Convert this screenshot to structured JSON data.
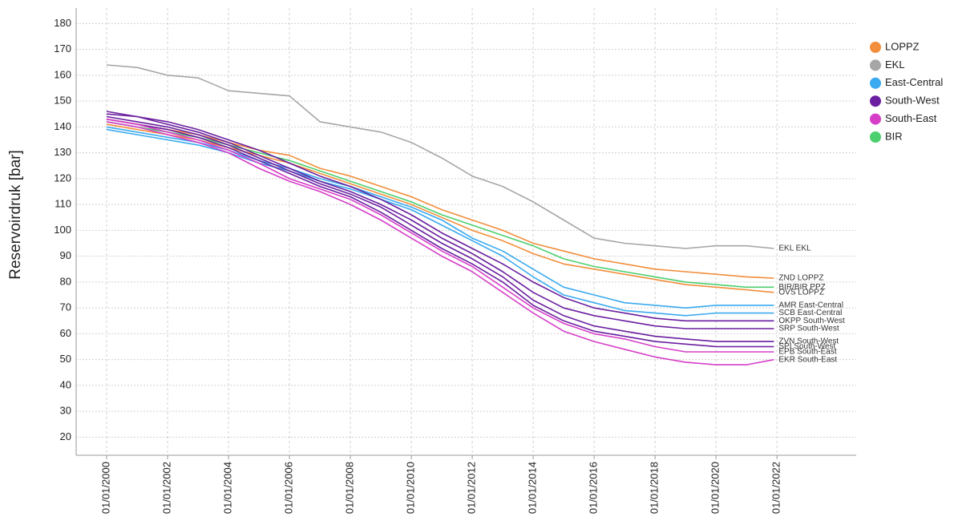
{
  "chart_data": {
    "type": "line",
    "y_label": "Reservoirdruk [bar]",
    "x": [
      2000,
      2001,
      2002,
      2003,
      2004,
      2005,
      2006,
      2007,
      2008,
      2009,
      2010,
      2011,
      2012,
      2013,
      2014,
      2015,
      2016,
      2017,
      2018,
      2019,
      2020,
      2021,
      2021.9
    ],
    "xlim": [
      1999,
      2024.6
    ],
    "xticks": [
      {
        "value": 2000,
        "label": "01/01/2000"
      },
      {
        "value": 2002,
        "label": "01/01/2002"
      },
      {
        "value": 2004,
        "label": "01/01/2004"
      },
      {
        "value": 2006,
        "label": "01/01/2006"
      },
      {
        "value": 2008,
        "label": "01/01/2008"
      },
      {
        "value": 2010,
        "label": "01/01/2010"
      },
      {
        "value": 2012,
        "label": "01/01/2012"
      },
      {
        "value": 2014,
        "label": "01/01/2014"
      },
      {
        "value": 2016,
        "label": "01/01/2016"
      },
      {
        "value": 2018,
        "label": "01/01/2018"
      },
      {
        "value": 2020,
        "label": "01/01/2020"
      },
      {
        "value": 2022,
        "label": "01/01/2022"
      }
    ],
    "ylim": [
      13,
      186
    ],
    "yticks": [
      20,
      30,
      40,
      50,
      60,
      70,
      80,
      90,
      100,
      110,
      120,
      130,
      140,
      150,
      160,
      170,
      180
    ],
    "grid": true,
    "legend_position": "right",
    "legend": [
      {
        "name": "LOPPZ",
        "color": "#f28e3c"
      },
      {
        "name": "EKL",
        "color": "#a6a6a6"
      },
      {
        "name": "East-Central",
        "color": "#3aaaf0"
      },
      {
        "name": "South-West",
        "color": "#6a1fa0"
      },
      {
        "name": "South-East",
        "color": "#d63ec8"
      },
      {
        "name": "BIR",
        "color": "#4ccf6e"
      }
    ],
    "series": [
      {
        "name": "EKL EKL",
        "color": "#a6a6a6",
        "values": [
          164,
          163,
          160,
          159,
          154,
          153,
          152,
          142,
          140,
          138,
          134,
          128,
          121,
          117,
          111,
          104,
          97,
          95,
          94,
          93,
          94,
          94,
          93
        ]
      },
      {
        "name": "ZND LOPPZ",
        "color": "#f28e3c",
        "values": [
          143,
          141,
          139,
          137,
          134,
          131,
          129,
          124,
          121,
          117,
          113,
          108,
          104,
          100,
          95,
          92,
          89,
          87,
          85,
          84,
          83,
          82,
          81.5
        ]
      },
      {
        "name": "BIR/BIR PPZ",
        "color": "#4ccf6e",
        "values": [
          142,
          140,
          138,
          136,
          133,
          130,
          127,
          123,
          119,
          115,
          111,
          106,
          102,
          98,
          94,
          89,
          86,
          84,
          82,
          80,
          79,
          78,
          78
        ]
      },
      {
        "name": "OVS LOPPZ",
        "color": "#f28e3c",
        "values": [
          141,
          139,
          137,
          135,
          132,
          129,
          126,
          122,
          118,
          114,
          110,
          105,
          100,
          96,
          91,
          87,
          85,
          83,
          81,
          79,
          78,
          77,
          76
        ]
      },
      {
        "name": "AMR East-Central",
        "color": "#3aaaf0",
        "values": [
          140,
          138,
          136,
          134,
          131,
          127,
          124,
          120,
          117,
          113,
          109,
          104,
          97,
          92,
          85,
          78,
          75,
          72,
          71,
          70,
          71,
          71,
          71
        ]
      },
      {
        "name": "SCB East-Central",
        "color": "#3aaaf0",
        "values": [
          139,
          137,
          135,
          133,
          130,
          126,
          123,
          119,
          116,
          112,
          108,
          102,
          96,
          90,
          82,
          75,
          72,
          69,
          68,
          67,
          68,
          68,
          68
        ]
      },
      {
        "name": "OKPP South-West",
        "color": "#6a1fa0",
        "values": [
          145,
          144,
          142,
          139,
          135,
          131,
          126,
          121,
          117,
          112,
          106,
          99,
          93,
          87,
          80,
          74,
          70,
          68,
          66,
          65,
          65,
          65,
          65
        ]
      },
      {
        "name": "SRP South-West",
        "color": "#6a1fa0",
        "values": [
          146,
          144,
          141,
          138,
          134,
          129,
          124,
          119,
          115,
          110,
          104,
          97,
          91,
          84,
          76,
          70,
          67,
          65,
          63,
          62,
          62,
          62,
          62
        ]
      },
      {
        "name": "ZVN South-West",
        "color": "#6a1fa0",
        "values": [
          144,
          142,
          140,
          137,
          133,
          128,
          123,
          118,
          114,
          109,
          102,
          95,
          89,
          82,
          73,
          67,
          63,
          61,
          59,
          58,
          57,
          57,
          57
        ]
      },
      {
        "name": "SPI South-West",
        "color": "#6a1fa0",
        "values": [
          143,
          141,
          139,
          136,
          132,
          127,
          122,
          117,
          113,
          107,
          100,
          93,
          87,
          80,
          71,
          65,
          61,
          59,
          57,
          56,
          55,
          55,
          55
        ]
      },
      {
        "name": "EPB South-East",
        "color": "#d63ec8",
        "values": [
          143,
          141,
          138,
          135,
          131,
          126,
          120,
          116,
          112,
          106,
          99,
          92,
          86,
          78,
          70,
          64,
          60,
          58,
          55,
          53,
          53,
          53,
          53
        ]
      },
      {
        "name": "EKR South-East",
        "color": "#d63ec8",
        "values": [
          142,
          140,
          137,
          134,
          130,
          124,
          119,
          115,
          110,
          104,
          97,
          90,
          84,
          76,
          68,
          61,
          57,
          54,
          51,
          49,
          48,
          48,
          50
        ]
      }
    ]
  }
}
